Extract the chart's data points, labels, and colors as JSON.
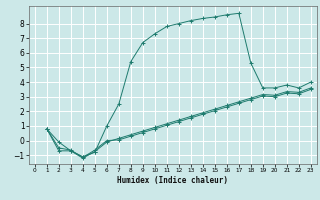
{
  "xlabel": "Humidex (Indice chaleur)",
  "background_color": "#cce8e8",
  "grid_color": "#ffffff",
  "line_color": "#1e7b6e",
  "xlim": [
    -0.5,
    23.5
  ],
  "ylim": [
    -1.6,
    9.2
  ],
  "xticks": [
    0,
    1,
    2,
    3,
    4,
    5,
    6,
    7,
    8,
    9,
    10,
    11,
    12,
    13,
    14,
    15,
    16,
    17,
    18,
    19,
    20,
    21,
    22,
    23
  ],
  "yticks": [
    -1,
    0,
    1,
    2,
    3,
    4,
    5,
    6,
    7,
    8
  ],
  "series1_x": [
    1,
    2,
    3,
    4,
    5,
    6,
    7,
    8,
    9,
    10,
    11,
    12,
    13,
    14,
    15,
    16,
    17,
    18,
    19,
    20,
    21,
    22,
    23
  ],
  "series1_y": [
    0.8,
    -0.1,
    -0.7,
    -1.1,
    -0.8,
    1.0,
    2.5,
    5.4,
    6.7,
    7.3,
    7.8,
    8.0,
    8.2,
    8.35,
    8.45,
    8.6,
    8.7,
    5.3,
    3.6,
    3.6,
    3.8,
    3.6,
    4.0
  ],
  "series2_x": [
    1,
    2,
    3,
    4,
    5,
    6,
    7,
    8,
    9,
    10,
    11,
    12,
    13,
    14,
    15,
    16,
    17,
    18,
    19,
    20,
    21,
    22,
    23
  ],
  "series2_y": [
    0.8,
    -0.7,
    -0.7,
    -1.2,
    -0.75,
    -0.1,
    0.15,
    0.4,
    0.65,
    0.9,
    1.15,
    1.4,
    1.65,
    1.9,
    2.15,
    2.4,
    2.65,
    2.9,
    3.15,
    3.1,
    3.35,
    3.3,
    3.6
  ],
  "series3_x": [
    1,
    2,
    3,
    4,
    5,
    6,
    7,
    8,
    9,
    10,
    11,
    12,
    13,
    14,
    15,
    16,
    17,
    18,
    19,
    20,
    21,
    22,
    23
  ],
  "series3_y": [
    0.8,
    -0.5,
    -0.65,
    -1.15,
    -0.65,
    0.0,
    0.05,
    0.3,
    0.55,
    0.8,
    1.05,
    1.3,
    1.55,
    1.8,
    2.05,
    2.3,
    2.55,
    2.8,
    3.05,
    3.0,
    3.25,
    3.2,
    3.5
  ]
}
